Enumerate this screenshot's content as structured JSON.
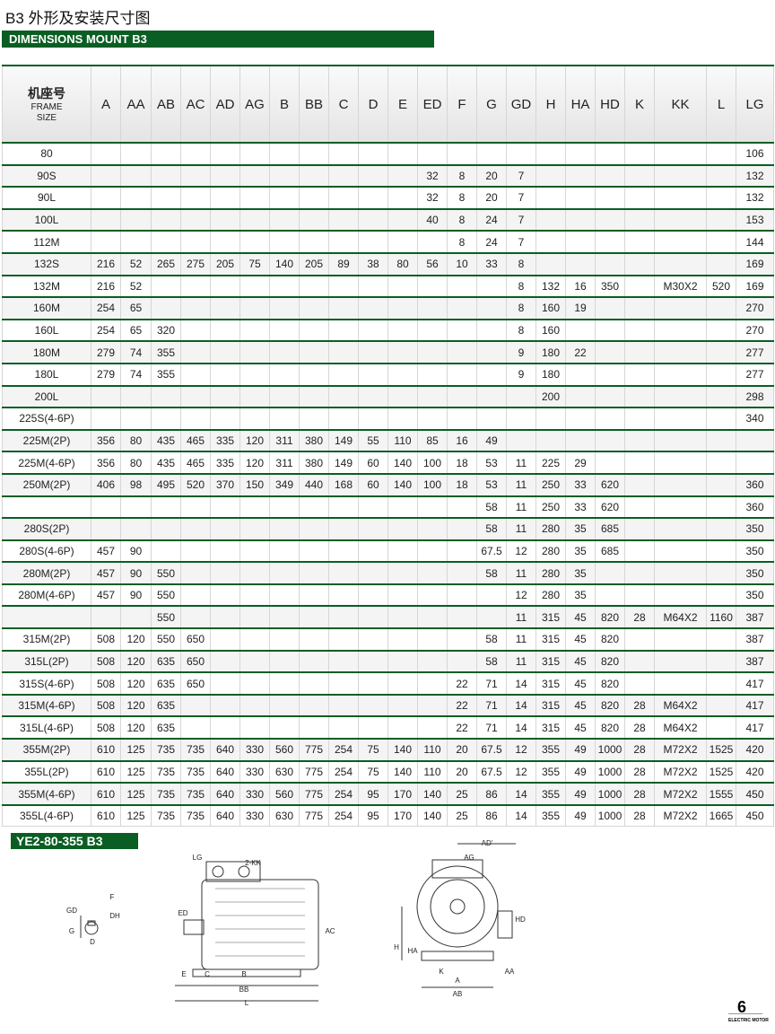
{
  "header": {
    "title": "B3 外形及安装尺寸图",
    "banner": "DIMENSIONS MOUNT B3"
  },
  "table": {
    "frame_header": [
      "机座号",
      "FRAME",
      "SIZE"
    ],
    "columns": [
      "A",
      "AA",
      "AB",
      "AC",
      "AD",
      "AG",
      "B",
      "BB",
      "C",
      "D",
      "E",
      "ED",
      "F",
      "G",
      "GD",
      "H",
      "HA",
      "HD",
      "K",
      "KK",
      "L",
      "LG"
    ],
    "rows": [
      [
        "80",
        null,
        null,
        null,
        null,
        null,
        null,
        null,
        null,
        null,
        null,
        null,
        null,
        null,
        null,
        null,
        null,
        null,
        null,
        null,
        null,
        null,
        "106"
      ],
      [
        "90S",
        null,
        null,
        null,
        null,
        null,
        null,
        null,
        null,
        null,
        null,
        null,
        "32",
        "8",
        "20",
        "7",
        null,
        null,
        null,
        null,
        null,
        null,
        "132"
      ],
      [
        "90L",
        null,
        null,
        null,
        null,
        null,
        null,
        null,
        null,
        null,
        null,
        null,
        "32",
        "8",
        "20",
        "7",
        null,
        null,
        null,
        null,
        null,
        null,
        "132"
      ],
      [
        "100L",
        null,
        null,
        null,
        null,
        null,
        null,
        null,
        null,
        null,
        null,
        null,
        "40",
        "8",
        "24",
        "7",
        null,
        null,
        null,
        null,
        null,
        null,
        "153"
      ],
      [
        "112M",
        null,
        null,
        null,
        null,
        null,
        null,
        null,
        null,
        null,
        null,
        null,
        null,
        "8",
        "24",
        "7",
        null,
        null,
        null,
        null,
        null,
        null,
        "144"
      ],
      [
        "132S",
        "216",
        "52",
        "265",
        "275",
        "205",
        "75",
        "140",
        "205",
        "89",
        "38",
        "80",
        "56",
        "10",
        "33",
        "8",
        null,
        null,
        null,
        null,
        null,
        null,
        "169"
      ],
      [
        "132M",
        "216",
        "52",
        null,
        null,
        null,
        null,
        null,
        null,
        null,
        null,
        null,
        null,
        null,
        null,
        "8",
        "132",
        "16",
        "350",
        null,
        "M30X2",
        "520",
        "169"
      ],
      [
        "160M",
        "254",
        "65",
        null,
        null,
        null,
        null,
        null,
        null,
        null,
        null,
        null,
        null,
        null,
        null,
        "8",
        "160",
        "19",
        null,
        null,
        null,
        null,
        "270"
      ],
      [
        "160L",
        "254",
        "65",
        "320",
        null,
        null,
        null,
        null,
        null,
        null,
        null,
        null,
        null,
        null,
        null,
        "8",
        "160",
        null,
        null,
        null,
        null,
        null,
        "270"
      ],
      [
        "180M",
        "279",
        "74",
        "355",
        null,
        null,
        null,
        null,
        null,
        null,
        null,
        null,
        null,
        null,
        null,
        "9",
        "180",
        "22",
        null,
        null,
        null,
        null,
        "277"
      ],
      [
        "180L",
        "279",
        "74",
        "355",
        null,
        null,
        null,
        null,
        null,
        null,
        null,
        null,
        null,
        null,
        null,
        "9",
        "180",
        null,
        null,
        null,
        null,
        null,
        "277"
      ],
      [
        "200L",
        null,
        null,
        null,
        null,
        null,
        null,
        null,
        null,
        null,
        null,
        null,
        null,
        null,
        null,
        null,
        "200",
        null,
        null,
        null,
        null,
        null,
        "298"
      ],
      [
        "225S(4-6P)",
        null,
        null,
        null,
        null,
        null,
        null,
        null,
        null,
        null,
        null,
        null,
        null,
        null,
        null,
        null,
        null,
        null,
        null,
        null,
        null,
        null,
        "340"
      ],
      [
        "225M(2P)",
        "356",
        "80",
        "435",
        "465",
        "335",
        "120",
        "311",
        "380",
        "149",
        "55",
        "110",
        "85",
        "16",
        "49",
        null,
        null,
        null,
        null,
        null,
        null,
        null,
        null
      ],
      [
        "225M(4-6P)",
        "356",
        "80",
        "435",
        "465",
        "335",
        "120",
        "311",
        "380",
        "149",
        "60",
        "140",
        "100",
        "18",
        "53",
        "11",
        "225",
        "29",
        null,
        null,
        null,
        null,
        null
      ],
      [
        "250M(2P)",
        "406",
        "98",
        "495",
        "520",
        "370",
        "150",
        "349",
        "440",
        "168",
        "60",
        "140",
        "100",
        "18",
        "53",
        "11",
        "250",
        "33",
        "620",
        null,
        null,
        null,
        "360"
      ],
      [
        null,
        null,
        null,
        null,
        null,
        null,
        null,
        null,
        null,
        null,
        null,
        null,
        null,
        null,
        "58",
        "11",
        "250",
        "33",
        "620",
        null,
        null,
        null,
        "360"
      ],
      [
        "280S(2P)",
        null,
        null,
        null,
        null,
        null,
        null,
        null,
        null,
        null,
        null,
        null,
        null,
        null,
        "58",
        "11",
        "280",
        "35",
        "685",
        null,
        null,
        null,
        "350"
      ],
      [
        "280S(4-6P)",
        "457",
        "90",
        null,
        null,
        null,
        null,
        null,
        null,
        null,
        null,
        null,
        null,
        null,
        "67.5",
        "12",
        "280",
        "35",
        "685",
        null,
        null,
        null,
        "350"
      ],
      [
        "280M(2P)",
        "457",
        "90",
        "550",
        null,
        null,
        null,
        null,
        null,
        null,
        null,
        null,
        null,
        null,
        "58",
        "11",
        "280",
        "35",
        null,
        null,
        null,
        null,
        "350"
      ],
      [
        "280M(4-6P)",
        "457",
        "90",
        "550",
        null,
        null,
        null,
        null,
        null,
        null,
        null,
        null,
        null,
        null,
        null,
        "12",
        "280",
        "35",
        null,
        null,
        null,
        null,
        "350"
      ],
      [
        null,
        null,
        null,
        "550",
        null,
        null,
        null,
        null,
        null,
        null,
        null,
        null,
        null,
        null,
        null,
        "11",
        "315",
        "45",
        "820",
        "28",
        "M64X2",
        "1160",
        "387"
      ],
      [
        "315M(2P)",
        "508",
        "120",
        "550",
        "650",
        null,
        null,
        null,
        null,
        null,
        null,
        null,
        null,
        null,
        "58",
        "11",
        "315",
        "45",
        "820",
        null,
        null,
        null,
        "387"
      ],
      [
        "315L(2P)",
        "508",
        "120",
        "635",
        "650",
        null,
        null,
        null,
        null,
        null,
        null,
        null,
        null,
        null,
        "58",
        "11",
        "315",
        "45",
        "820",
        null,
        null,
        null,
        "387"
      ],
      [
        "315S(4-6P)",
        "508",
        "120",
        "635",
        "650",
        null,
        null,
        null,
        null,
        null,
        null,
        null,
        null,
        "22",
        "71",
        "14",
        "315",
        "45",
        "820",
        null,
        null,
        null,
        "417"
      ],
      [
        "315M(4-6P)",
        "508",
        "120",
        "635",
        null,
        null,
        null,
        null,
        null,
        null,
        null,
        null,
        null,
        "22",
        "71",
        "14",
        "315",
        "45",
        "820",
        "28",
        "M64X2",
        null,
        "417"
      ],
      [
        "315L(4-6P)",
        "508",
        "120",
        "635",
        null,
        null,
        null,
        null,
        null,
        null,
        null,
        null,
        null,
        "22",
        "71",
        "14",
        "315",
        "45",
        "820",
        "28",
        "M64X2",
        null,
        "417"
      ],
      [
        "355M(2P)",
        "610",
        "125",
        "735",
        "735",
        "640",
        "330",
        "560",
        "775",
        "254",
        "75",
        "140",
        "110",
        "20",
        "67.5",
        "12",
        "355",
        "49",
        "1000",
        "28",
        "M72X2",
        "1525",
        "420"
      ],
      [
        "355L(2P)",
        "610",
        "125",
        "735",
        "735",
        "640",
        "330",
        "630",
        "775",
        "254",
        "75",
        "140",
        "110",
        "20",
        "67.5",
        "12",
        "355",
        "49",
        "1000",
        "28",
        "M72X2",
        "1525",
        "420"
      ],
      [
        "355M(4-6P)",
        "610",
        "125",
        "735",
        "735",
        "640",
        "330",
        "560",
        "775",
        "254",
        "95",
        "170",
        "140",
        "25",
        "86",
        "14",
        "355",
        "49",
        "1000",
        "28",
        "M72X2",
        "1555",
        "450"
      ],
      [
        "355L(4-6P)",
        "610",
        "125",
        "735",
        "735",
        "640",
        "330",
        "630",
        "775",
        "254",
        "95",
        "170",
        "140",
        "25",
        "86",
        "14",
        "355",
        "49",
        "1000",
        "28",
        "M72X2",
        "1665",
        "450"
      ]
    ]
  },
  "drawing": {
    "banner": "YE2-80-355 B3",
    "labels": [
      "LG",
      "2-KK",
      "ED",
      "E",
      "C",
      "B",
      "BB",
      "L",
      "AC",
      "F",
      "GD",
      "DH",
      "G",
      "D",
      "AD'",
      "AG",
      "HD",
      "H",
      "HA",
      "K",
      "A",
      "AB",
      "AA"
    ]
  },
  "footer": {
    "page": "6",
    "caption": "ELECTRIC MOTOR"
  }
}
